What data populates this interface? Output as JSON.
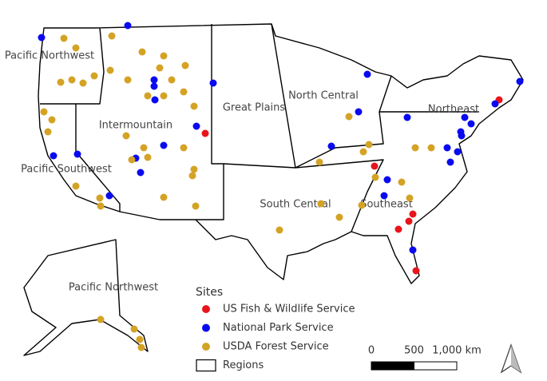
{
  "map": {
    "regions": [
      "Pacific Northwest",
      "Intermountain",
      "Great Plains",
      "North Central",
      "Northeast",
      "Pacific Southwest",
      "South Central",
      "Southeast",
      "Pacific Northwest"
    ],
    "legend": {
      "title": "Sites",
      "entries": [
        {
          "label": "US Fish & Wildlife Service",
          "color": "#e8141b"
        },
        {
          "label": "National Park Service",
          "color": "#0a0af0"
        },
        {
          "label": "USDA Forest Service",
          "color": "#d4a325"
        },
        {
          "label": "Regions"
        }
      ]
    },
    "scale_bar": {
      "ticks": [
        0,
        500,
        {
          "value": 1000,
          "label": "1,000 km"
        }
      ]
    }
  }
}
